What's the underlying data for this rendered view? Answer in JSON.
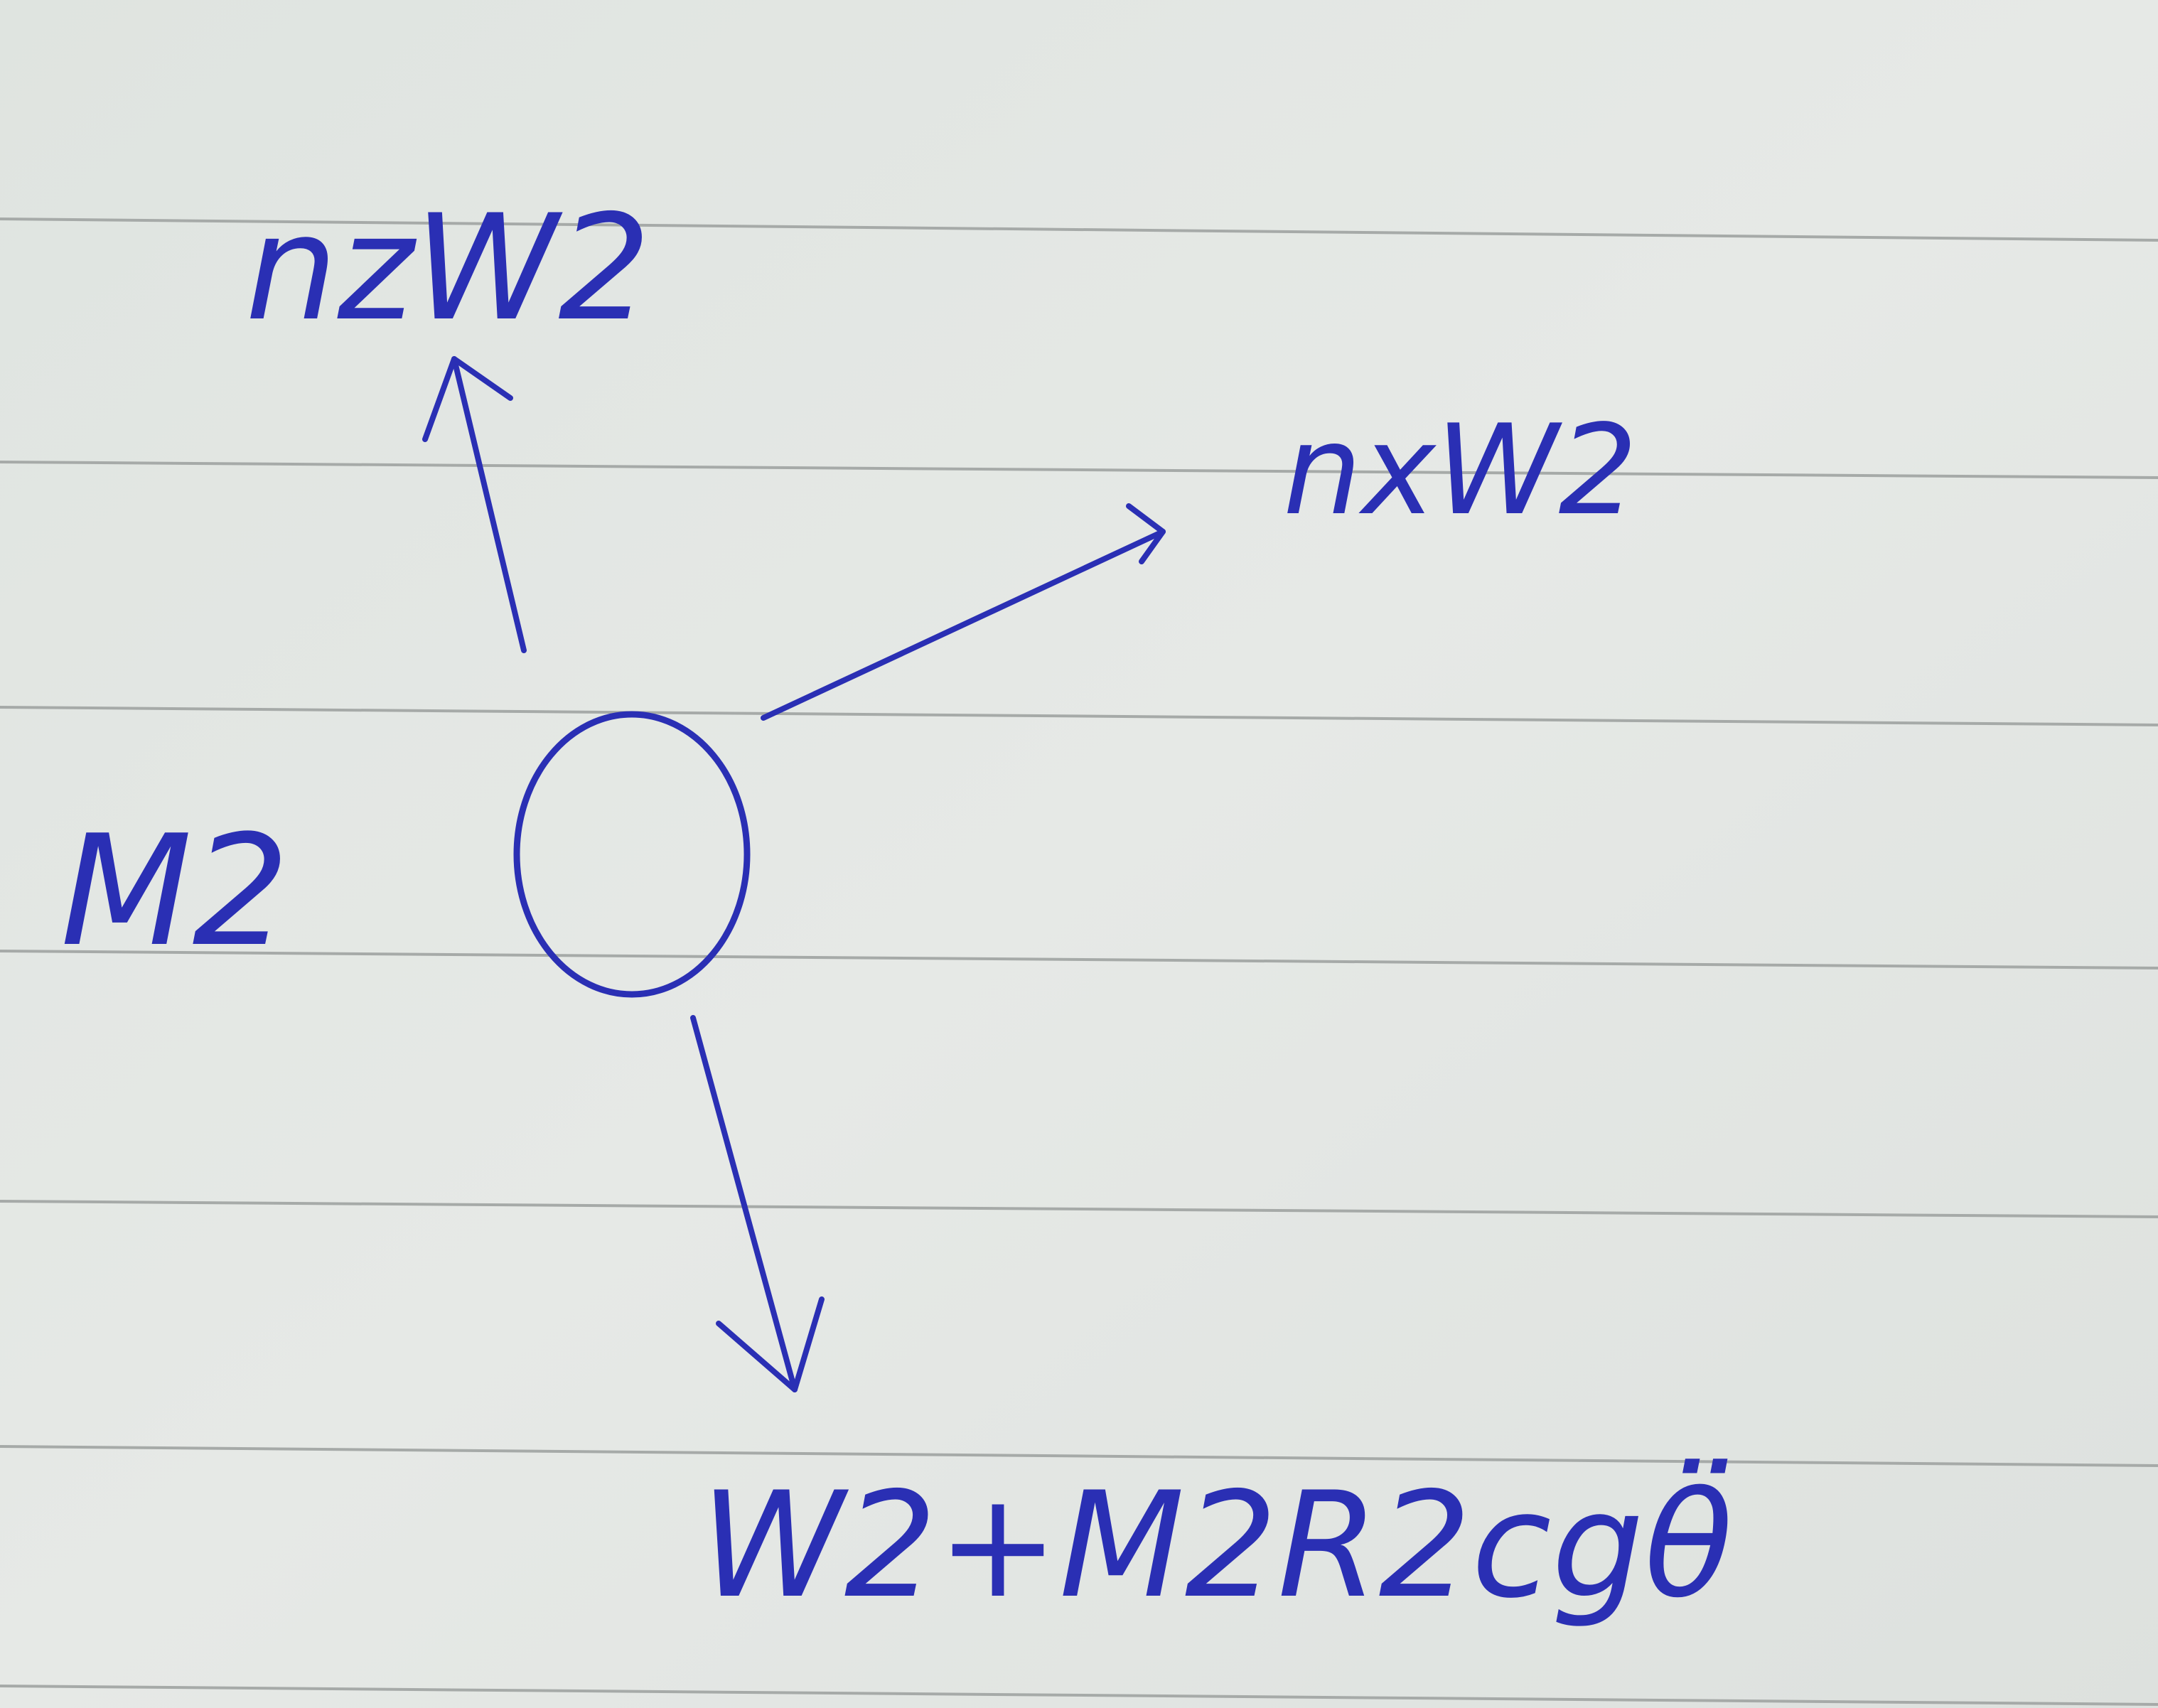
{
  "diagram": {
    "body_label": "M2",
    "upward_force": "nzW2",
    "rightward_force": "nxW2",
    "downward_force": "W2+M2R2cgθ̈"
  },
  "colors": {
    "paper": "#e3e7e3",
    "rule_line": "#a6aaa8",
    "ink": "#2a2fb4"
  }
}
